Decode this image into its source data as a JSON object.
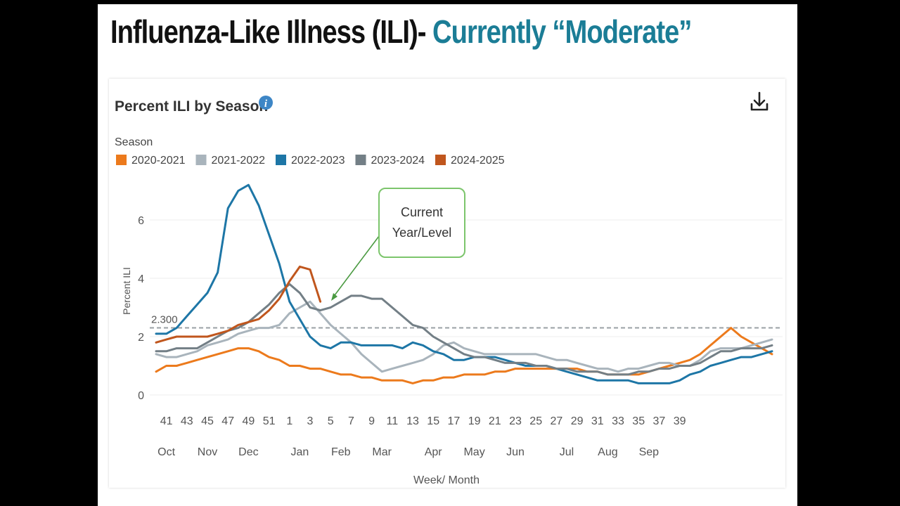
{
  "slide": {
    "title_lead": "Influenza-Like Illness (ILI)-",
    "title_accent": "Currently “Moderate”"
  },
  "panel": {
    "title": "Percent ILI by Season",
    "info_icon": "info-icon",
    "download_icon": "download-icon"
  },
  "annotation": {
    "line1": "Current",
    "line2": "Year/Level"
  },
  "chart_data": {
    "type": "line",
    "legend_title": "Season",
    "legend_placement": "top-left",
    "xlabel": "Week/ Month",
    "ylabel": "Percent ILI",
    "ylim": [
      0,
      8
    ],
    "yticks": [
      0,
      2,
      4,
      6
    ],
    "grid": true,
    "x_week_labels": [
      "41",
      "43",
      "45",
      "47",
      "49",
      "51",
      "1",
      "3",
      "5",
      "7",
      "9",
      "11",
      "13",
      "15",
      "17",
      "19",
      "21",
      "23",
      "25",
      "27",
      "29",
      "31",
      "33",
      "35",
      "37",
      "39"
    ],
    "month_labels": [
      "Oct",
      "Nov",
      "Dec",
      "Jan",
      "Feb",
      "Mar",
      "Apr",
      "May",
      "Jun",
      "Jul",
      "Aug",
      "Sep"
    ],
    "month_label_index": [
      1,
      5,
      9,
      14,
      18,
      22,
      27,
      31,
      35,
      40,
      44,
      48
    ],
    "baseline": {
      "label": "2.300",
      "value": 2.3
    },
    "series": [
      {
        "name": "2020-2021",
        "color": "#ec7a1c",
        "values": [
          0.8,
          1.0,
          1.0,
          1.1,
          1.2,
          1.3,
          1.4,
          1.5,
          1.6,
          1.6,
          1.5,
          1.3,
          1.2,
          1.0,
          1.0,
          0.9,
          0.9,
          0.8,
          0.7,
          0.7,
          0.6,
          0.6,
          0.5,
          0.5,
          0.5,
          0.4,
          0.5,
          0.5,
          0.6,
          0.6,
          0.7,
          0.7,
          0.7,
          0.8,
          0.8,
          0.9,
          0.9,
          0.9,
          0.9,
          0.9,
          0.9,
          0.9,
          0.8,
          0.8,
          0.7,
          0.7,
          0.7,
          0.7,
          0.8,
          0.9,
          1.0,
          1.1,
          1.2,
          1.4,
          1.7,
          2.0,
          2.3,
          2.0,
          1.8,
          1.6,
          1.4
        ]
      },
      {
        "name": "2021-2022",
        "color": "#a9b4bc",
        "values": [
          1.4,
          1.3,
          1.3,
          1.4,
          1.5,
          1.7,
          1.8,
          1.9,
          2.1,
          2.2,
          2.3,
          2.3,
          2.4,
          2.8,
          3.0,
          3.2,
          2.8,
          2.4,
          2.1,
          1.8,
          1.4,
          1.1,
          0.8,
          0.9,
          1.0,
          1.1,
          1.2,
          1.4,
          1.7,
          1.8,
          1.6,
          1.5,
          1.4,
          1.4,
          1.4,
          1.4,
          1.4,
          1.4,
          1.3,
          1.2,
          1.2,
          1.1,
          1.0,
          0.9,
          0.9,
          0.8,
          0.9,
          0.9,
          1.0,
          1.1,
          1.1,
          1.0,
          1.0,
          1.2,
          1.5,
          1.6,
          1.6,
          1.6,
          1.7,
          1.8,
          1.9
        ]
      },
      {
        "name": "2022-2023",
        "color": "#1d76a6",
        "values": [
          2.1,
          2.1,
          2.3,
          2.7,
          3.1,
          3.5,
          4.2,
          6.4,
          7.0,
          7.2,
          6.5,
          5.5,
          4.5,
          3.2,
          2.6,
          2.0,
          1.7,
          1.6,
          1.8,
          1.8,
          1.7,
          1.7,
          1.7,
          1.7,
          1.6,
          1.8,
          1.7,
          1.5,
          1.4,
          1.2,
          1.2,
          1.3,
          1.3,
          1.3,
          1.2,
          1.1,
          1.0,
          1.0,
          1.0,
          0.9,
          0.8,
          0.7,
          0.6,
          0.5,
          0.5,
          0.5,
          0.5,
          0.4,
          0.4,
          0.4,
          0.4,
          0.5,
          0.7,
          0.8,
          1.0,
          1.1,
          1.2,
          1.3,
          1.3,
          1.4,
          1.5
        ]
      },
      {
        "name": "2023-2024",
        "color": "#737f86",
        "values": [
          1.5,
          1.5,
          1.6,
          1.6,
          1.6,
          1.8,
          2.0,
          2.2,
          2.3,
          2.5,
          2.8,
          3.1,
          3.5,
          3.8,
          3.5,
          3.0,
          2.9,
          3.0,
          3.2,
          3.4,
          3.4,
          3.3,
          3.3,
          3.0,
          2.7,
          2.4,
          2.3,
          2.0,
          1.8,
          1.6,
          1.4,
          1.3,
          1.3,
          1.2,
          1.1,
          1.1,
          1.1,
          1.0,
          1.0,
          0.9,
          0.9,
          0.8,
          0.8,
          0.8,
          0.7,
          0.7,
          0.7,
          0.8,
          0.8,
          0.9,
          0.9,
          1.0,
          1.0,
          1.1,
          1.3,
          1.5,
          1.5,
          1.6,
          1.6,
          1.6,
          1.7
        ]
      },
      {
        "name": "2024-2025",
        "color": "#c0561d",
        "values": [
          1.8,
          1.9,
          2.0,
          2.0,
          2.0,
          2.0,
          2.1,
          2.2,
          2.4,
          2.5,
          2.6,
          2.9,
          3.3,
          3.9,
          4.4,
          4.3,
          3.2
        ]
      }
    ]
  }
}
